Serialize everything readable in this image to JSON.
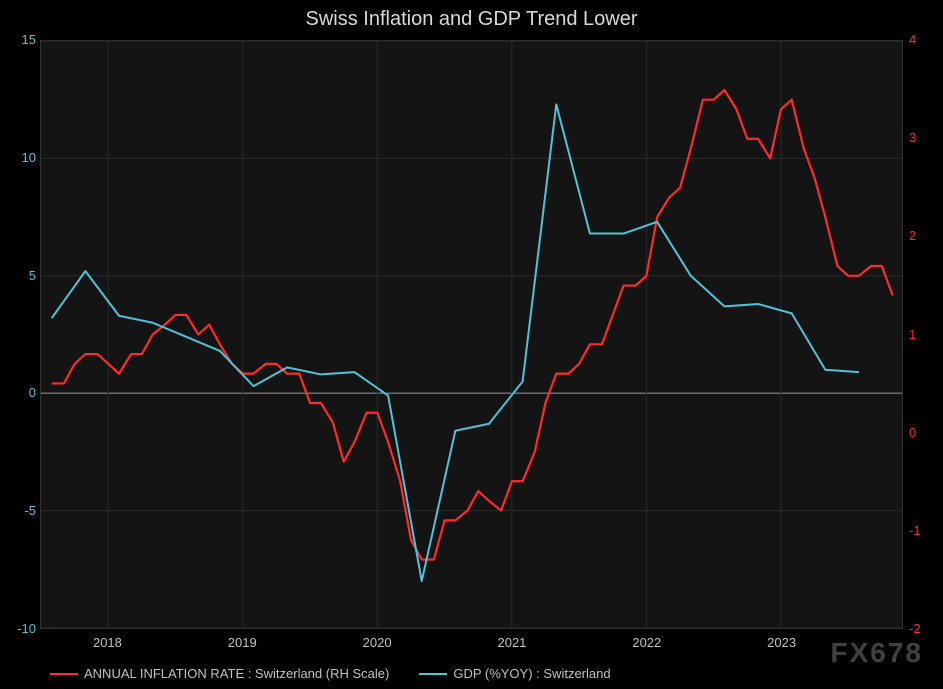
{
  "chart": {
    "type": "line",
    "title": "Swiss Inflation and GDP Trend Lower",
    "title_fontsize": 20,
    "title_color": "#d8d8d8",
    "background_color": "#000000",
    "plot_background_color": "#141414",
    "grid_color": "#2a2a2a",
    "zero_line_color": "#888888",
    "watermark": "FX678",
    "watermark_color": "rgba(255,255,255,0.25)",
    "x_axis": {
      "ticks": [
        2018,
        2019,
        2020,
        2021,
        2022,
        2023
      ],
      "label_color": "#c0c0c0",
      "label_fontsize": 13,
      "range": [
        2017.5,
        2023.9
      ]
    },
    "y_left": {
      "ticks": [
        -10,
        -5,
        0,
        5,
        10,
        15
      ],
      "range": [
        -10,
        15
      ],
      "color": "#4fc3d9",
      "label_fontsize": 13
    },
    "y_right": {
      "ticks": [
        -2,
        -1,
        0,
        1,
        2,
        3,
        4
      ],
      "range": [
        -2,
        4
      ],
      "color": "#ff2a2a",
      "label_fontsize": 13
    },
    "legend": {
      "items": [
        {
          "label": "ANNUAL INFLATION RATE : Switzerland (RH Scale)",
          "color": "#ff2a2a"
        },
        {
          "label": "GDP (%YOY) : Switzerland",
          "color": "#4fc3d9"
        }
      ],
      "text_color": "#c0c0c0",
      "fontsize": 13
    },
    "series": [
      {
        "name": "inflation_rh",
        "axis": "right",
        "color": "#ff2a2a",
        "line_width": 2.2,
        "x": [
          2017.58,
          2017.67,
          2017.75,
          2017.83,
          2017.92,
          2018.0,
          2018.08,
          2018.17,
          2018.25,
          2018.33,
          2018.42,
          2018.5,
          2018.58,
          2018.67,
          2018.75,
          2018.83,
          2018.92,
          2019.0,
          2019.08,
          2019.17,
          2019.25,
          2019.33,
          2019.42,
          2019.5,
          2019.58,
          2019.67,
          2019.75,
          2019.83,
          2019.92,
          2020.0,
          2020.08,
          2020.17,
          2020.25,
          2020.33,
          2020.42,
          2020.5,
          2020.58,
          2020.67,
          2020.75,
          2020.83,
          2020.92,
          2021.0,
          2021.08,
          2021.17,
          2021.25,
          2021.33,
          2021.42,
          2021.5,
          2021.58,
          2021.67,
          2021.75,
          2021.83,
          2021.92,
          2022.0,
          2022.08,
          2022.17,
          2022.25,
          2022.33,
          2022.42,
          2022.5,
          2022.58,
          2022.67,
          2022.75,
          2022.83,
          2022.92,
          2023.0,
          2023.08,
          2023.17,
          2023.25,
          2023.33,
          2023.42,
          2023.5,
          2023.58,
          2023.67,
          2023.75,
          2023.83
        ],
        "y": [
          0.5,
          0.5,
          0.7,
          0.8,
          0.8,
          0.7,
          0.6,
          0.8,
          0.8,
          1.0,
          1.1,
          1.2,
          1.2,
          1.0,
          1.1,
          0.9,
          0.7,
          0.6,
          0.6,
          0.7,
          0.7,
          0.6,
          0.6,
          0.3,
          0.3,
          0.1,
          -0.3,
          -0.1,
          0.2,
          0.2,
          -0.1,
          -0.5,
          -1.1,
          -1.3,
          -1.3,
          -0.9,
          -0.9,
          -0.8,
          -0.6,
          -0.7,
          -0.8,
          -0.5,
          -0.5,
          -0.2,
          0.3,
          0.6,
          0.6,
          0.7,
          0.9,
          0.9,
          1.2,
          1.5,
          1.5,
          1.6,
          2.2,
          2.4,
          2.5,
          2.9,
          3.4,
          3.4,
          3.5,
          3.3,
          3.0,
          3.0,
          2.8,
          3.3,
          3.4,
          2.9,
          2.6,
          2.2,
          1.7,
          1.6,
          1.6,
          1.7,
          1.7,
          1.4
        ]
      },
      {
        "name": "gdp_left",
        "axis": "left",
        "color": "#4fc3d9",
        "line_width": 2.0,
        "x": [
          2017.58,
          2017.83,
          2018.08,
          2018.33,
          2018.58,
          2018.83,
          2019.08,
          2019.33,
          2019.58,
          2019.83,
          2020.08,
          2020.33,
          2020.58,
          2020.83,
          2021.08,
          2021.33,
          2021.58,
          2021.83,
          2022.08,
          2022.33,
          2022.58,
          2022.83,
          2023.08,
          2023.33,
          2023.58
        ],
        "y": [
          3.2,
          5.2,
          3.3,
          3.0,
          2.4,
          1.8,
          0.3,
          1.1,
          0.8,
          0.9,
          -0.1,
          -8.0,
          -1.6,
          -1.3,
          0.5,
          12.3,
          6.8,
          6.8,
          7.3,
          5.0,
          3.7,
          3.8,
          3.4,
          1.0,
          0.9
        ]
      }
    ]
  }
}
